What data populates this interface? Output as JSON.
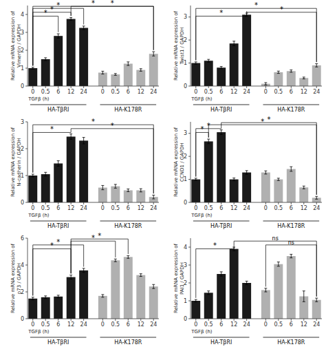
{
  "chart_data": [
    {
      "type": "bar",
      "y_label": "Relative mRNA expression of\nVimentin / GAPDH",
      "x_label": "TGFβ (h)",
      "categories": [
        "0",
        "0.5",
        "6",
        "12",
        "24"
      ],
      "series": [
        {
          "name": "HA-TβRI",
          "color": "#1a1a1a",
          "values": [
            1.0,
            1.5,
            2.8,
            3.75,
            3.25
          ],
          "errors": [
            0.05,
            0.08,
            0.12,
            0.08,
            0.1
          ]
        },
        {
          "name": "HA-K178R",
          "color": "#b0b0b0",
          "values": [
            0.75,
            0.65,
            1.25,
            0.9,
            1.8
          ],
          "errors": [
            0.08,
            0.05,
            0.1,
            0.07,
            0.12
          ]
        }
      ],
      "ylim": [
        0,
        4.5
      ],
      "yticks": [
        0,
        1,
        2,
        3,
        4
      ],
      "annotations": [
        {
          "from": 0,
          "to": 2,
          "label": "*"
        },
        {
          "from": 0,
          "to": 3,
          "label": "*"
        },
        {
          "from": 0,
          "to": 4,
          "label": "*"
        },
        {
          "from": 0,
          "to": 9,
          "label": "*"
        },
        {
          "from": 3,
          "to": 9,
          "label": "*"
        }
      ]
    },
    {
      "type": "bar",
      "y_label": "Relative mRNA expression of\nTwist1 / GAPDH",
      "x_label": "TGFβ (h)",
      "categories": [
        "0",
        "0.5",
        "6",
        "12",
        "24"
      ],
      "series": [
        {
          "name": "HA-TβRI",
          "color": "#1a1a1a",
          "values": [
            1.0,
            1.1,
            0.8,
            1.85,
            3.1
          ],
          "errors": [
            0.05,
            0.06,
            0.05,
            0.1,
            0.07
          ]
        },
        {
          "name": "HA-K178R",
          "color": "#b0b0b0",
          "values": [
            0.1,
            0.6,
            0.65,
            0.35,
            0.9
          ],
          "errors": [
            0.05,
            0.05,
            0.05,
            0.04,
            0.07
          ]
        }
      ],
      "ylim": [
        0,
        3.5
      ],
      "yticks": [
        0,
        1,
        2,
        3
      ],
      "annotations": [
        {
          "from": 0,
          "to": 4,
          "label": "*"
        },
        {
          "from": 4,
          "to": 9,
          "label": "*"
        },
        {
          "from": 0,
          "to": 9,
          "label": "*"
        }
      ]
    },
    {
      "type": "bar",
      "y_label": "Relative mRNA expression of\nN-cadherin / GAPDH",
      "x_label": "TGFβ (h)",
      "categories": [
        "0",
        "0.5",
        "6",
        "12",
        "24"
      ],
      "series": [
        {
          "name": "HA-TβRI",
          "color": "#1a1a1a",
          "values": [
            1.0,
            1.05,
            1.45,
            2.45,
            2.3
          ],
          "errors": [
            0.05,
            0.07,
            0.1,
            0.1,
            0.12
          ]
        },
        {
          "name": "HA-K178R",
          "color": "#b0b0b0",
          "values": [
            0.55,
            0.6,
            0.45,
            0.45,
            0.2
          ],
          "errors": [
            0.08,
            0.07,
            0.05,
            0.06,
            0.07
          ]
        }
      ],
      "ylim": [
        0,
        3.0
      ],
      "yticks": [
        0,
        1,
        2,
        3
      ],
      "annotations": [
        {
          "from": 0,
          "to": 3,
          "label": "*"
        },
        {
          "from": 3,
          "to": 9,
          "label": "*"
        },
        {
          "from": 0,
          "to": 9,
          "label": "*"
        }
      ]
    },
    {
      "type": "bar",
      "y_label": "Relative mRNA expression of\nCCND1 / GAPDH",
      "x_label": "TGFβ (h)",
      "categories": [
        "0",
        "0.5",
        "6",
        "12",
        "24"
      ],
      "series": [
        {
          "name": "HA-TβRI",
          "color": "#1a1a1a",
          "values": [
            1.0,
            2.65,
            3.05,
            1.0,
            1.3
          ],
          "errors": [
            0.05,
            0.1,
            0.1,
            0.06,
            0.08
          ]
        },
        {
          "name": "HA-K178R",
          "color": "#b0b0b0",
          "values": [
            1.3,
            1.0,
            1.45,
            0.65,
            0.2
          ],
          "errors": [
            0.07,
            0.05,
            0.1,
            0.06,
            0.06
          ]
        }
      ],
      "ylim": [
        0,
        3.5
      ],
      "yticks": [
        0,
        1,
        2,
        3
      ],
      "annotations": [
        {
          "from": 0,
          "to": 1,
          "label": "*"
        },
        {
          "from": 0,
          "to": 2,
          "label": "*"
        },
        {
          "from": 1,
          "to": 9,
          "label": "*"
        },
        {
          "from": 2,
          "to": 9,
          "label": "*"
        }
      ]
    },
    {
      "type": "bar",
      "y_label": "Relative mRNA expression of\np73 / GAPDH",
      "x_label": "TGFβ (h)",
      "categories": [
        "0",
        "0.5",
        "6",
        "12",
        "24"
      ],
      "series": [
        {
          "name": "HA-TβRI",
          "color": "#1a1a1a",
          "values": [
            1.5,
            1.6,
            1.65,
            3.1,
            3.6
          ],
          "errors": [
            0.1,
            0.1,
            0.1,
            0.15,
            0.15
          ]
        },
        {
          "name": "HA-K178R",
          "color": "#b0b0b0",
          "values": [
            1.7,
            4.35,
            4.6,
            3.25,
            2.4
          ],
          "errors": [
            0.1,
            0.1,
            0.1,
            0.1,
            0.15
          ]
        }
      ],
      "ylim": [
        0,
        6.0
      ],
      "yticks": [
        0,
        2,
        4,
        6
      ],
      "annotations": [
        {
          "from": 0,
          "to": 3,
          "label": "*"
        },
        {
          "from": 0,
          "to": 4,
          "label": "*"
        },
        {
          "from": 3,
          "to": 6,
          "label": "*"
        },
        {
          "from": 3,
          "to": 7,
          "label": "*"
        }
      ]
    },
    {
      "type": "bar",
      "y_label": "Relative mRNA expression of\nPAI1 / GAPDH",
      "x_label": "TGFβ (h)",
      "categories": [
        "0",
        "0.5",
        "6",
        "12",
        "24"
      ],
      "series": [
        {
          "name": "HA-TβRI",
          "color": "#1a1a1a",
          "values": [
            1.0,
            1.45,
            2.5,
            3.9,
            2.0
          ],
          "errors": [
            0.07,
            0.1,
            0.12,
            0.1,
            0.1
          ]
        },
        {
          "name": "HA-K178R",
          "color": "#b0b0b0",
          "values": [
            1.6,
            3.05,
            3.5,
            1.25,
            1.05
          ],
          "errors": [
            0.1,
            0.12,
            0.1,
            0.3,
            0.1
          ]
        }
      ],
      "ylim": [
        0,
        4.5
      ],
      "yticks": [
        0,
        1,
        2,
        3,
        4
      ],
      "annotations": [
        {
          "from": 0,
          "to": 3,
          "label": "*"
        },
        {
          "from": 5,
          "to": 9,
          "label": "ns"
        },
        {
          "from": 3,
          "to": 9,
          "label": "ns"
        }
      ]
    }
  ]
}
